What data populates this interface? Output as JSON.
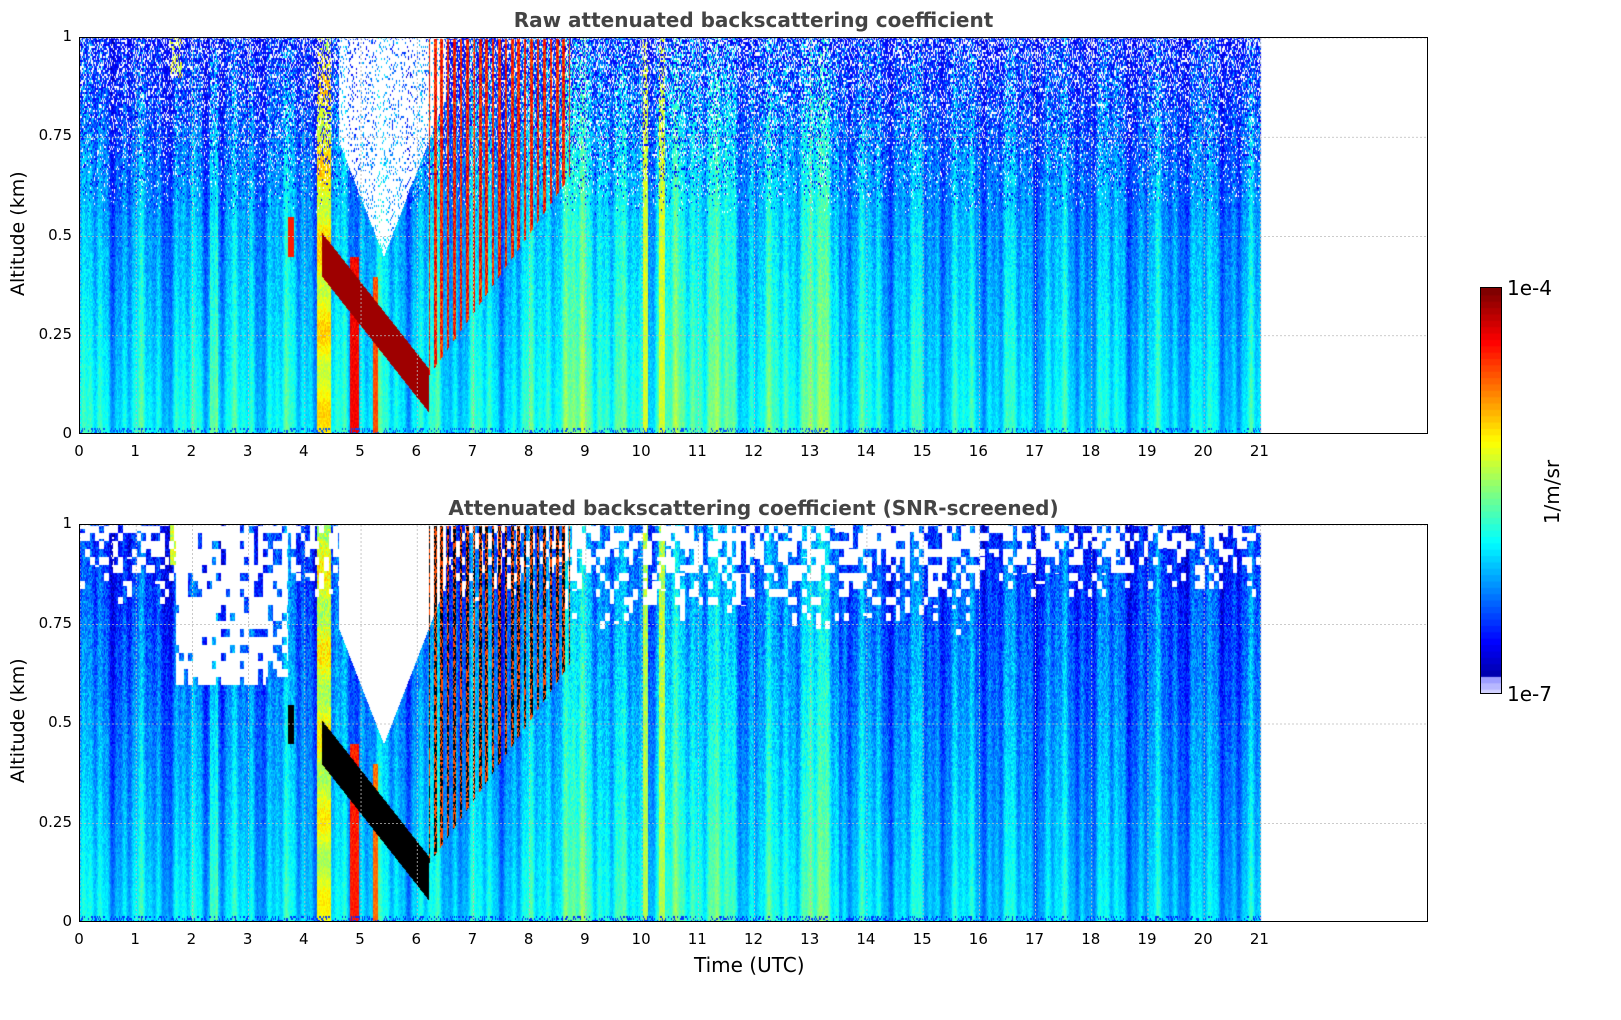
{
  "chart_data": [
    {
      "type": "heatmap",
      "title": "Raw attenuated backscattering coefficient",
      "xlabel": "",
      "ylabel": "Altitude (km)",
      "xlim": [
        0,
        24
      ],
      "ylim": [
        0,
        1
      ],
      "xticks": [
        "0",
        "1",
        "2",
        "3",
        "4",
        "5",
        "6",
        "7",
        "8",
        "9",
        "10",
        "11",
        "12",
        "13",
        "14",
        "15",
        "16",
        "17",
        "18",
        "19",
        "20",
        "21"
      ],
      "yticks": [
        "0",
        "0.25",
        "0.5",
        "0.75",
        "1"
      ],
      "data_end_time": 21,
      "grid": true,
      "screened": false
    },
    {
      "type": "heatmap",
      "title": "Attenuated backscattering coefficient (SNR-screened)",
      "xlabel": "Time (UTC)",
      "ylabel": "Altitude (km)",
      "xlim": [
        0,
        24
      ],
      "ylim": [
        0,
        1
      ],
      "xticks": [
        "0",
        "1",
        "2",
        "3",
        "4",
        "5",
        "6",
        "7",
        "8",
        "9",
        "10",
        "11",
        "12",
        "13",
        "14",
        "15",
        "16",
        "17",
        "18",
        "19",
        "20",
        "21"
      ],
      "yticks": [
        "0",
        "0.25",
        "0.5",
        "0.75",
        "1"
      ],
      "data_end_time": 21,
      "grid": true,
      "screened": true
    }
  ],
  "colorbar": {
    "label": "1/m/sr",
    "max_label": "1e-4",
    "min_label": "1e-7",
    "colormap": "jet",
    "placement": "right"
  }
}
